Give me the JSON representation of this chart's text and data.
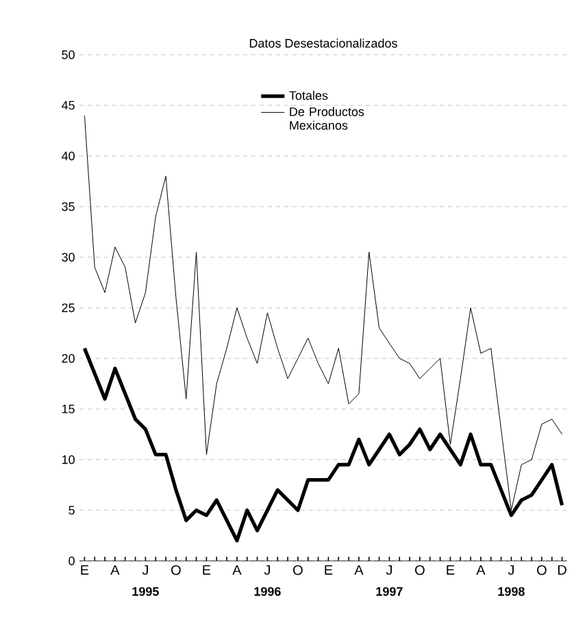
{
  "chart_data": {
    "type": "line",
    "title": "Datos Desestacionalizados",
    "categories": [
      "E",
      null,
      null,
      "A",
      null,
      null,
      "J",
      null,
      null,
      "O",
      null,
      null,
      "E",
      null,
      null,
      "A",
      null,
      null,
      "J",
      null,
      null,
      "O",
      null,
      null,
      "E",
      null,
      null,
      "A",
      null,
      null,
      "J",
      null,
      null,
      "O",
      null,
      null,
      "E",
      null,
      null,
      "A",
      null,
      null,
      "J",
      null,
      null,
      "O",
      null,
      "D"
    ],
    "series": [
      {
        "name": "Totales",
        "color": "#000000",
        "values": [
          21,
          18.5,
          16,
          19,
          16.5,
          14,
          13,
          10.5,
          10.5,
          7,
          4,
          5,
          4.5,
          6,
          4,
          2,
          5,
          3,
          5,
          7,
          6,
          5,
          8,
          8,
          8,
          9.5,
          9.5,
          12,
          9.5,
          11,
          12.5,
          10.5,
          11.5,
          13,
          11,
          12.5,
          11,
          9.5,
          12.5,
          9.5,
          9.5,
          7,
          4.5,
          6,
          6.5,
          8,
          9.5,
          5.5
        ]
      },
      {
        "name": "De Productos Mexicanos",
        "color": "#000000",
        "values": [
          44,
          29,
          26.5,
          31,
          29,
          23.5,
          26.5,
          34,
          38,
          26,
          16,
          30.5,
          10.5,
          17.5,
          21,
          25,
          22,
          19.5,
          24.5,
          21,
          18,
          20,
          22,
          19.5,
          17.5,
          21,
          15.5,
          16.5,
          30.5,
          23,
          21.5,
          20,
          19.5,
          18,
          19,
          20,
          11.5,
          18,
          25,
          20.5,
          21,
          13,
          5,
          9.5,
          10,
          13.5,
          14,
          12.5
        ]
      }
    ],
    "annotations": [
      "1995",
      "1996",
      "1997",
      "1998"
    ],
    "ylim": [
      0,
      50
    ],
    "yticks": [
      0,
      5,
      10,
      15,
      20,
      25,
      30,
      35,
      40,
      45,
      50
    ],
    "grid": "y",
    "legend": "top",
    "line_style": "solid",
    "marker": "none"
  }
}
